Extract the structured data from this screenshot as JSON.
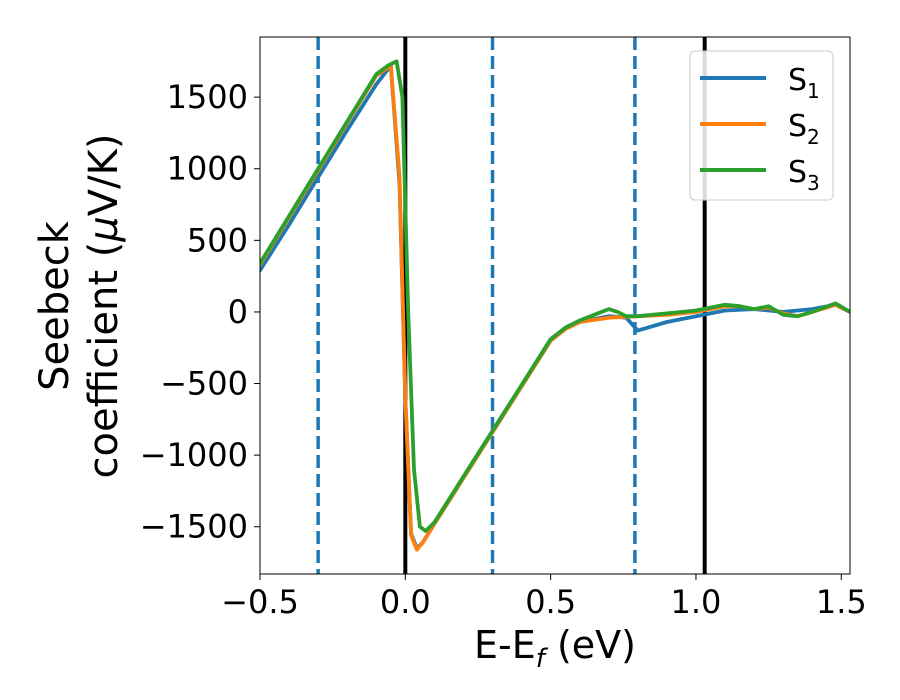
{
  "chart_data": {
    "type": "line",
    "title": "",
    "xlabel": "E-E",
    "xlabel_sub": "f",
    "xlabel_unit": " (eV)",
    "ylabel_line1": "Seebeck",
    "ylabel_line2_prefix": "coefficient  (",
    "ylabel_mu": "μ",
    "ylabel_line2_suffix": "V/K)",
    "xlim": [
      -0.5,
      1.53
    ],
    "ylim": [
      -1830,
      1920
    ],
    "xticks": [
      -0.5,
      0.0,
      0.5,
      1.0,
      1.5
    ],
    "xtick_labels": [
      "−0.5",
      "0.0",
      "0.5",
      "1.0",
      "1.5"
    ],
    "yticks": [
      -1500,
      -1000,
      -500,
      0,
      500,
      1000,
      1500
    ],
    "ytick_labels": [
      "−1500",
      "−1000",
      "−500",
      "0",
      "500",
      "1000",
      "1500"
    ],
    "grid": false,
    "legend_position": "top-right",
    "vertical_lines": [
      {
        "x": -0.3,
        "style": "dashed",
        "color": "#1f77b4"
      },
      {
        "x": 0.0,
        "style": "solid",
        "color": "#000000"
      },
      {
        "x": 0.3,
        "style": "dashed",
        "color": "#1f77b4"
      },
      {
        "x": 0.79,
        "style": "dashed",
        "color": "#1f77b4"
      },
      {
        "x": 1.03,
        "style": "solid",
        "color": "#000000"
      }
    ],
    "series": [
      {
        "name": "S",
        "subscript": "1",
        "color": "#1f77b4",
        "x": [
          -0.5,
          -0.4,
          -0.3,
          -0.2,
          -0.1,
          -0.05,
          -0.02,
          0.0,
          0.02,
          0.04,
          0.06,
          0.1,
          0.2,
          0.3,
          0.4,
          0.5,
          0.55,
          0.6,
          0.7,
          0.76,
          0.8,
          0.9,
          1.0,
          1.1,
          1.2,
          1.3,
          1.4,
          1.48,
          1.53
        ],
        "y": [
          290,
          610,
          940,
          1270,
          1590,
          1720,
          900,
          -600,
          -1550,
          -1650,
          -1610,
          -1480,
          -1160,
          -840,
          -520,
          -200,
          -120,
          -70,
          -30,
          -40,
          -130,
          -70,
          -30,
          10,
          20,
          0,
          20,
          50,
          0
        ]
      },
      {
        "name": "S",
        "subscript": "2",
        "color": "#ff7f0e",
        "x": [
          -0.5,
          -0.4,
          -0.3,
          -0.2,
          -0.1,
          -0.05,
          -0.02,
          0.0,
          0.02,
          0.04,
          0.06,
          0.1,
          0.2,
          0.3,
          0.4,
          0.5,
          0.55,
          0.6,
          0.7,
          0.8,
          0.9,
          1.0,
          1.1,
          1.15,
          1.2,
          1.25,
          1.3,
          1.35,
          1.4,
          1.48,
          1.53
        ],
        "y": [
          330,
          660,
          990,
          1320,
          1650,
          1720,
          950,
          -600,
          -1560,
          -1660,
          -1610,
          -1480,
          -1160,
          -840,
          -520,
          -200,
          -120,
          -70,
          -40,
          -30,
          -20,
          0,
          40,
          40,
          20,
          30,
          -10,
          -30,
          0,
          50,
          0
        ]
      },
      {
        "name": "S",
        "subscript": "3",
        "color": "#2ca02c",
        "x": [
          -0.5,
          -0.4,
          -0.3,
          -0.2,
          -0.1,
          -0.06,
          -0.03,
          -0.01,
          0.01,
          0.03,
          0.05,
          0.07,
          0.1,
          0.2,
          0.3,
          0.4,
          0.5,
          0.55,
          0.6,
          0.65,
          0.7,
          0.73,
          0.76,
          0.8,
          0.9,
          1.0,
          1.1,
          1.15,
          1.2,
          1.25,
          1.3,
          1.35,
          1.4,
          1.48,
          1.53
        ],
        "y": [
          340,
          670,
          1000,
          1330,
          1660,
          1720,
          1750,
          1500,
          0,
          -1100,
          -1500,
          -1530,
          -1470,
          -1150,
          -830,
          -510,
          -190,
          -110,
          -60,
          -20,
          20,
          0,
          -30,
          -30,
          -10,
          10,
          50,
          40,
          20,
          40,
          -20,
          -30,
          0,
          60,
          0
        ]
      }
    ]
  }
}
